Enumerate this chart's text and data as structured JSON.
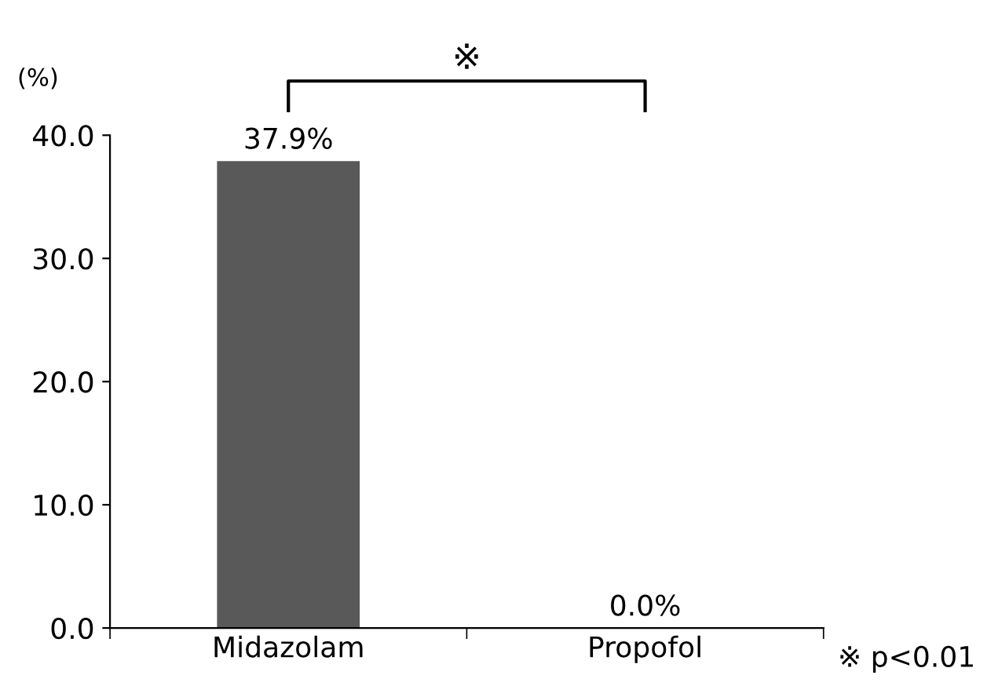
{
  "chart_data": {
    "type": "bar",
    "ylabel": "(%)",
    "categories": [
      "Midazolam",
      "Propofol"
    ],
    "series": [
      {
        "color": "#595959",
        "values": [
          37.9,
          0.0
        ],
        "value_labels": [
          "37.9%",
          "0.0%"
        ]
      }
    ],
    "ylim": [
      0,
      40
    ],
    "yticks": [
      {
        "value": 0,
        "label": "0.0"
      },
      {
        "value": 10,
        "label": "10.0"
      },
      {
        "value": 20,
        "label": "20.0"
      },
      {
        "value": 30,
        "label": "30.0"
      },
      {
        "value": 40,
        "label": "40.0"
      }
    ],
    "grid": false,
    "legend": false,
    "annotations": [
      "※",
      "※ p<0.01"
    ]
  }
}
